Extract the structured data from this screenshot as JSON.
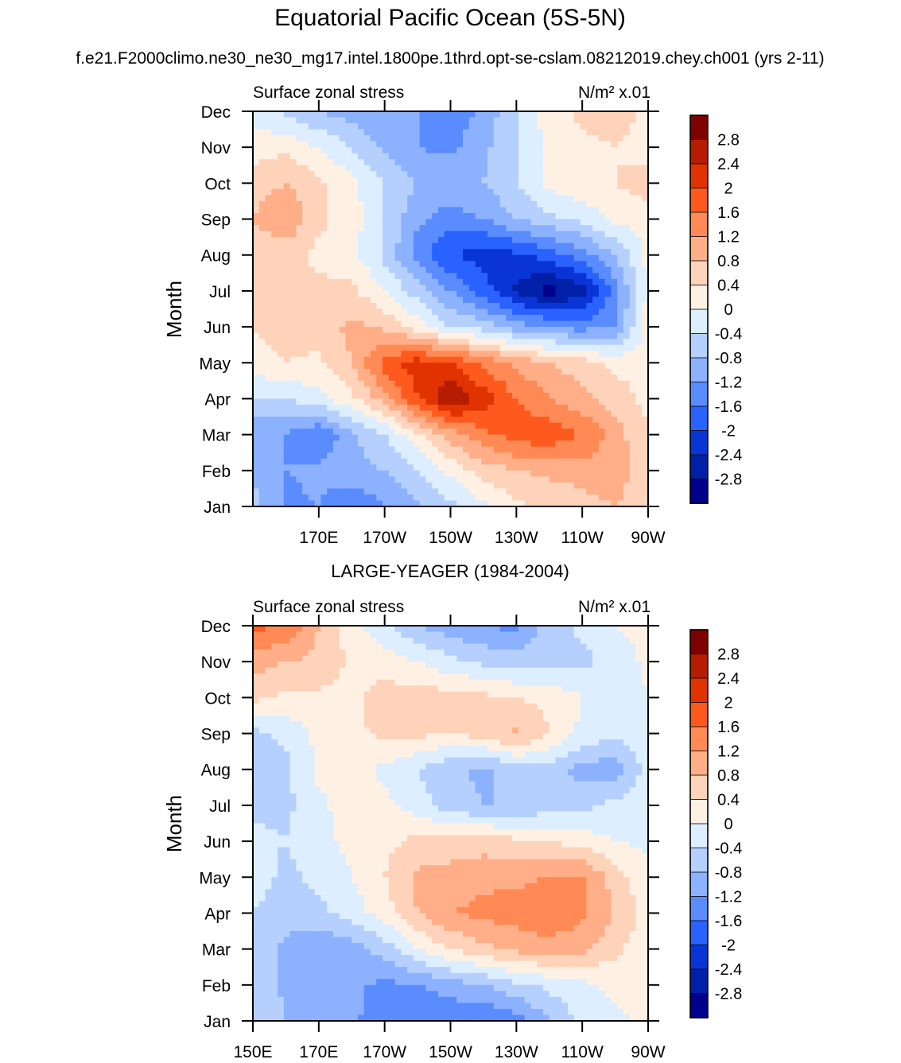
{
  "figure": {
    "title": "Equatorial Pacific Ocean (5S-5N)",
    "subtitle": "f.e21.F2000climo.ne30_ne30_mg17.intel.1800pe.1thrd.opt-se-cslam.08212019.chey.ch001 (yrs 2-11)"
  },
  "colorbar": {
    "levels": [
      "2.8",
      "2.4",
      "2",
      "1.6",
      "1.2",
      "0.8",
      "0.4",
      "0",
      "-0.4",
      "-0.8",
      "-1.2",
      "-1.6",
      "-2",
      "-2.4",
      "-2.8"
    ],
    "colors": [
      "#7f0000",
      "#b51c00",
      "#e03300",
      "#fe5a1e",
      "#ff8a55",
      "#ffae88",
      "#ffd3ba",
      "#fff0e4",
      "#dceeff",
      "#b5d0ff",
      "#8cb1ff",
      "#5a8cff",
      "#2a62ff",
      "#0a35d6",
      "#0020a8",
      "#00008b"
    ]
  },
  "chart_data": [
    {
      "type": "heatmap",
      "title": "",
      "left_label": "Surface zonal stress",
      "right_label": "N/m² x.01",
      "ylabel": "Month",
      "xlabel": "",
      "y_ticks": [
        "Jan",
        "Feb",
        "Mar",
        "Apr",
        "May",
        "Jun",
        "Jul",
        "Aug",
        "Sep",
        "Oct",
        "Nov",
        "Dec"
      ],
      "x_ticks": [
        "170E",
        "170W",
        "150W",
        "130W",
        "110W",
        "90W"
      ],
      "x_lon_range": [
        150,
        270
      ],
      "grid_lon": [
        150,
        160,
        170,
        180,
        190,
        200,
        210,
        220,
        230,
        240,
        250,
        260,
        270
      ],
      "values": [
        [
          -0.6,
          -1.3,
          -1.2,
          -1.6,
          -1.2,
          -0.9,
          -0.5,
          -0.1,
          0.3,
          0.5,
          0.6,
          0.8,
          0.5
        ],
        [
          -0.9,
          -1.2,
          -1.1,
          -0.9,
          -0.8,
          -0.4,
          0.1,
          0.6,
          0.8,
          0.9,
          1.0,
          1.1,
          0.4
        ],
        [
          -1.1,
          -1.2,
          -1.6,
          -0.9,
          -0.4,
          0.3,
          1.0,
          1.5,
          1.8,
          1.9,
          1.6,
          1.0,
          0.4
        ],
        [
          -0.4,
          -0.4,
          -0.1,
          0.3,
          1.0,
          2.0,
          2.8,
          2.2,
          1.6,
          1.2,
          0.9,
          0.6,
          0.3
        ],
        [
          0.2,
          0.4,
          0.3,
          0.8,
          1.8,
          2.2,
          2.0,
          1.5,
          1.1,
          0.8,
          0.6,
          0.3,
          0.2
        ],
        [
          0.4,
          0.6,
          0.6,
          0.9,
          0.7,
          0.2,
          -0.4,
          -0.6,
          -1.0,
          -1.2,
          -1.4,
          -1.2,
          0.2
        ],
        [
          0.6,
          0.8,
          0.5,
          0.5,
          0.0,
          -0.6,
          -1.2,
          -1.8,
          -2.5,
          -3.0,
          -2.6,
          -1.4,
          0.1
        ],
        [
          0.5,
          0.5,
          0.3,
          0.1,
          -0.5,
          -1.4,
          -2.0,
          -2.2,
          -2.1,
          -1.8,
          -1.4,
          -0.8,
          0.1
        ],
        [
          0.8,
          1.2,
          0.5,
          0.2,
          -0.4,
          -1.1,
          -1.4,
          -1.2,
          -0.8,
          -0.5,
          -0.3,
          0.1,
          0.2
        ],
        [
          0.6,
          0.8,
          0.5,
          0.1,
          -0.4,
          -0.8,
          -0.9,
          -0.8,
          -0.4,
          0.1,
          0.3,
          0.4,
          0.6
        ],
        [
          0.2,
          0.3,
          0.0,
          -0.4,
          -0.9,
          -1.2,
          -1.3,
          -0.9,
          -0.4,
          0.1,
          0.3,
          0.4,
          0.2
        ],
        [
          -0.2,
          -0.5,
          -0.8,
          -1.0,
          -1.1,
          -1.2,
          -1.5,
          -1.1,
          -0.4,
          0.2,
          0.5,
          0.6,
          0.3
        ]
      ]
    },
    {
      "type": "heatmap",
      "title": "LARGE-YEAGER (1984-2004)",
      "left_label": "Surface zonal stress",
      "right_label": "N/m² x.01",
      "ylabel": "Month",
      "xlabel": "",
      "y_ticks": [
        "Jan",
        "Feb",
        "Mar",
        "Apr",
        "May",
        "Jun",
        "Jul",
        "Aug",
        "Sep",
        "Oct",
        "Nov",
        "Dec"
      ],
      "x_ticks": [
        "150E",
        "170E",
        "170W",
        "150W",
        "130W",
        "110W",
        "90W"
      ],
      "x_lon_range": [
        150,
        270
      ],
      "grid_lon": [
        150,
        160,
        170,
        180,
        190,
        200,
        210,
        220,
        230,
        240,
        250,
        260,
        270
      ],
      "values": [
        [
          -0.4,
          -0.8,
          -0.9,
          -1.1,
          -1.5,
          -1.6,
          -1.5,
          -1.6,
          -1.4,
          -0.8,
          -0.3,
          -0.1,
          0.1
        ],
        [
          -0.5,
          -0.9,
          -1.0,
          -1.1,
          -1.3,
          -1.2,
          -1.0,
          -0.8,
          -0.5,
          -0.3,
          -0.1,
          0.1,
          0.1
        ],
        [
          -0.6,
          -0.9,
          -1.2,
          -1.0,
          -0.6,
          0.0,
          0.4,
          0.7,
          0.9,
          1.0,
          0.9,
          0.5,
          0.1
        ],
        [
          -0.4,
          -0.6,
          -0.5,
          -0.2,
          0.2,
          0.8,
          1.2,
          1.3,
          1.4,
          1.6,
          1.3,
          0.8,
          0.2
        ],
        [
          -0.2,
          -0.5,
          -0.3,
          0.0,
          0.4,
          0.9,
          1.0,
          1.1,
          1.1,
          1.2,
          1.3,
          0.6,
          0.1
        ],
        [
          -0.3,
          -0.4,
          -0.1,
          0.1,
          0.3,
          0.5,
          0.5,
          0.6,
          0.5,
          0.4,
          0.2,
          0.0,
          -0.1
        ],
        [
          -0.5,
          -0.5,
          -0.1,
          0.2,
          0.1,
          -0.2,
          -0.6,
          -0.8,
          -0.8,
          -0.6,
          -0.5,
          -0.3,
          -0.2
        ],
        [
          -0.8,
          -0.5,
          0.1,
          0.2,
          -0.1,
          -0.4,
          -0.7,
          -0.9,
          -0.6,
          -0.5,
          -1.0,
          -1.0,
          -0.2
        ],
        [
          -0.5,
          -0.3,
          0.1,
          0.3,
          0.5,
          0.5,
          0.4,
          0.6,
          0.9,
          0.4,
          -0.1,
          -0.3,
          -0.2
        ],
        [
          0.5,
          0.3,
          0.3,
          0.3,
          0.6,
          0.6,
          0.6,
          0.5,
          0.4,
          0.3,
          0.0,
          -0.3,
          0.0
        ],
        [
          1.0,
          0.8,
          0.7,
          0.3,
          0.2,
          0.0,
          -0.3,
          -0.5,
          -0.6,
          -0.6,
          -0.5,
          -0.3,
          0.1
        ],
        [
          1.7,
          1.6,
          0.8,
          0.2,
          -0.3,
          -0.8,
          -1.0,
          -1.2,
          -1.3,
          -0.6,
          -0.3,
          0.0,
          0.2
        ]
      ]
    }
  ]
}
